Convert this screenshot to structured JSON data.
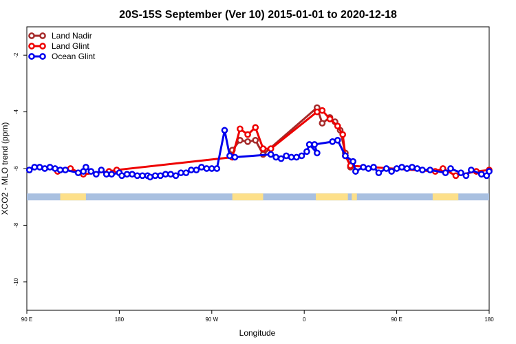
{
  "chart_data": {
    "type": "line",
    "title": "20S-15S September (Ver 10)   2015-01-01 to 2020-12-18",
    "xlabel": "Longitude",
    "ylabel": "XCO2 - MLO trend (ppm)",
    "xlim": [
      0,
      360
    ],
    "ylim": [
      -11,
      -1
    ],
    "x_ticks": [
      {
        "value": 0,
        "label": "90 E"
      },
      {
        "value": 72,
        "label": "180"
      },
      {
        "value": 144,
        "label": "90 W"
      },
      {
        "value": 216,
        "label": "0"
      },
      {
        "value": 288,
        "label": "90 E"
      },
      {
        "value": 360,
        "label": "180"
      }
    ],
    "y_ticks": [
      {
        "value": -2,
        "label": "-2"
      },
      {
        "value": -4,
        "label": "-4"
      },
      {
        "value": -6,
        "label": "-6"
      },
      {
        "value": -8,
        "label": "-8"
      },
      {
        "value": -10,
        "label": "-10"
      }
    ],
    "legend_position": "top-left",
    "surface_band": {
      "y": -7,
      "ocean_color": "#a9c0e0",
      "land_color": "#fde08a",
      "land_ranges": [
        [
          26,
          46
        ],
        [
          160,
          184
        ],
        [
          225,
          250
        ],
        [
          253,
          257
        ],
        [
          316,
          336
        ]
      ]
    },
    "series": [
      {
        "name": "Land Nadir",
        "color": "#a52a2a",
        "points": [
          [
            160,
            -5.35
          ],
          [
            166,
            -5.0
          ],
          [
            172,
            -5.05
          ],
          [
            178,
            -5.0
          ],
          [
            184,
            -5.5
          ],
          [
            226,
            -3.85
          ],
          [
            230,
            -4.4
          ],
          [
            236,
            -4.2
          ],
          [
            240,
            -4.35
          ],
          [
            244,
            -4.65
          ],
          [
            248,
            -5.45
          ],
          [
            252,
            -5.95
          ]
        ]
      },
      {
        "name": "Land Glint",
        "color": "#ee0000",
        "points": [
          [
            24,
            -6.1
          ],
          [
            34,
            -6.0
          ],
          [
            44,
            -6.2
          ],
          [
            64,
            -6.1
          ],
          [
            70,
            -6.05
          ],
          [
            160,
            -5.6
          ],
          [
            166,
            -4.6
          ],
          [
            172,
            -4.8
          ],
          [
            178,
            -4.55
          ],
          [
            184,
            -5.3
          ],
          [
            190,
            -5.3
          ],
          [
            226,
            -4.0
          ],
          [
            230,
            -3.95
          ],
          [
            236,
            -4.25
          ],
          [
            242,
            -4.5
          ],
          [
            246,
            -4.8
          ],
          [
            248,
            -5.55
          ],
          [
            252,
            -5.9
          ],
          [
            318,
            -6.1
          ],
          [
            324,
            -6.0
          ],
          [
            334,
            -6.25
          ],
          [
            350,
            -6.1
          ],
          [
            360,
            -6.05
          ]
        ]
      },
      {
        "name": "Ocean Glint",
        "color": "#0000ee",
        "points": [
          [
            2,
            -6.05
          ],
          [
            6,
            -5.95
          ],
          [
            10,
            -5.95
          ],
          [
            14,
            -6.0
          ],
          [
            18,
            -5.95
          ],
          [
            22,
            -6.0
          ],
          [
            26,
            -6.05
          ],
          [
            30,
            -6.05
          ],
          [
            40,
            -6.15
          ],
          [
            44,
            -6.1
          ],
          [
            46,
            -5.95
          ],
          [
            50,
            -6.1
          ],
          [
            54,
            -6.2
          ],
          [
            58,
            -6.05
          ],
          [
            62,
            -6.2
          ],
          [
            66,
            -6.2
          ],
          [
            72,
            -6.15
          ],
          [
            74,
            -6.25
          ],
          [
            78,
            -6.2
          ],
          [
            82,
            -6.2
          ],
          [
            86,
            -6.25
          ],
          [
            90,
            -6.25
          ],
          [
            94,
            -6.25
          ],
          [
            96,
            -6.3
          ],
          [
            100,
            -6.25
          ],
          [
            104,
            -6.25
          ],
          [
            108,
            -6.2
          ],
          [
            112,
            -6.2
          ],
          [
            116,
            -6.25
          ],
          [
            120,
            -6.15
          ],
          [
            124,
            -6.15
          ],
          [
            128,
            -6.05
          ],
          [
            132,
            -6.05
          ],
          [
            136,
            -5.95
          ],
          [
            140,
            -6.0
          ],
          [
            144,
            -6.0
          ],
          [
            148,
            -6.0
          ],
          [
            154,
            -4.65
          ],
          [
            158,
            -5.55
          ],
          [
            162,
            -5.6
          ],
          [
            190,
            -5.5
          ],
          [
            194,
            -5.6
          ],
          [
            198,
            -5.65
          ],
          [
            202,
            -5.55
          ],
          [
            206,
            -5.6
          ],
          [
            210,
            -5.6
          ],
          [
            214,
            -5.55
          ],
          [
            218,
            -5.4
          ],
          [
            220,
            -5.15
          ],
          [
            226,
            -5.45
          ],
          [
            224,
            -5.15
          ],
          [
            238,
            -5.05
          ],
          [
            242,
            -5.0
          ],
          [
            248,
            -5.55
          ],
          [
            254,
            -5.75
          ],
          [
            256,
            -6.1
          ],
          [
            262,
            -5.95
          ],
          [
            266,
            -6.0
          ],
          [
            270,
            -5.95
          ],
          [
            274,
            -6.15
          ],
          [
            280,
            -6.0
          ],
          [
            284,
            -6.1
          ],
          [
            288,
            -6.0
          ],
          [
            292,
            -5.95
          ],
          [
            296,
            -6.0
          ],
          [
            300,
            -5.95
          ],
          [
            304,
            -6.0
          ],
          [
            308,
            -6.05
          ],
          [
            314,
            -6.05
          ],
          [
            326,
            -6.15
          ],
          [
            330,
            -6.0
          ],
          [
            338,
            -6.15
          ],
          [
            342,
            -6.25
          ],
          [
            346,
            -6.05
          ],
          [
            354,
            -6.2
          ],
          [
            358,
            -6.25
          ],
          [
            362,
            -6.1
          ]
        ]
      }
    ]
  }
}
